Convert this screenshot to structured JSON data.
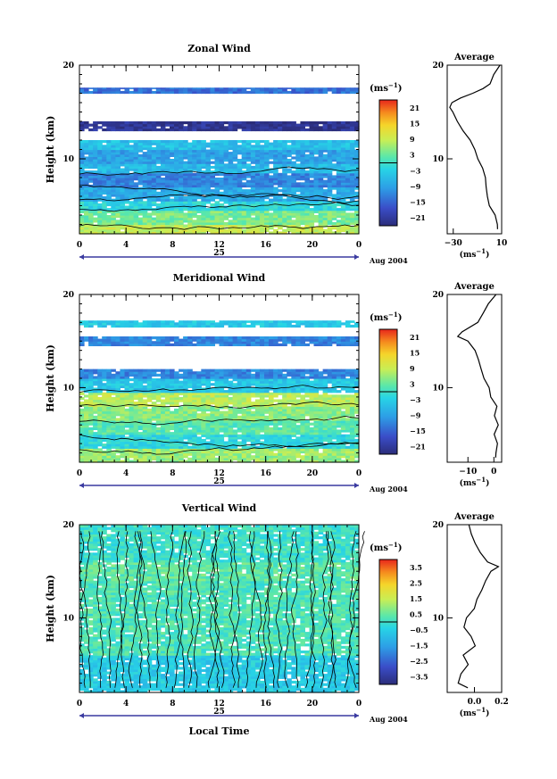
{
  "chart_data": [
    {
      "type": "heatmap",
      "title": "Zonal Wind",
      "ylabel": "Height (km)",
      "ylim": [
        2,
        20
      ],
      "y_ticks": [
        "20",
        "10"
      ],
      "xlim": [
        0,
        24
      ],
      "x_ticks": [
        "0",
        "4",
        "8",
        "12",
        "16",
        "20",
        "0"
      ],
      "date_label": "25",
      "month_label": "Aug 2004",
      "colorbar": {
        "unit": "(ms",
        "unit_exp": "−1",
        "unit_close": ")",
        "ticks": [
          "21",
          "15",
          "9",
          "3",
          "−3",
          "−9",
          "−15",
          "−21"
        ],
        "range": [
          -24,
          24
        ]
      },
      "profile": {
        "title": "Average",
        "xlim": [
          -35,
          10
        ],
        "x_ticks": [
          "−30",
          "10"
        ],
        "y_ticks": [
          "20",
          "10"
        ],
        "unit": "(ms",
        "unit_exp": "−1",
        "unit_close": ")",
        "height": [
          2.5,
          3,
          4,
          5,
          6,
          7,
          8,
          9,
          10,
          11,
          12,
          13,
          14,
          15,
          15.5,
          16,
          16.5,
          17,
          17.5,
          18,
          19,
          20
        ],
        "value": [
          7,
          6,
          4,
          0,
          -2,
          -3,
          -4,
          -6,
          -9,
          -12,
          -16,
          -22,
          -26,
          -30,
          -33,
          -31,
          -24,
          -14,
          -6,
          0,
          4,
          8
        ]
      },
      "layers": [
        {
          "range": [
            2,
            3
          ],
          "value": 9
        },
        {
          "range": [
            3,
            4.5
          ],
          "value": 4
        },
        {
          "range": [
            4.5,
            5.5
          ],
          "value": -2
        },
        {
          "range": [
            5.5,
            7
          ],
          "value": -8
        },
        {
          "range": [
            7,
            8.5
          ],
          "value": -12
        },
        {
          "range": [
            8.5,
            9.5
          ],
          "value": -6
        },
        {
          "range": [
            9.5,
            11
          ],
          "value": -9
        },
        {
          "range": [
            11,
            12
          ],
          "value": -5
        },
        {
          "range": [
            13,
            14
          ],
          "value": -22
        },
        {
          "range": [
            17,
            17.6
          ],
          "value": -14
        }
      ]
    },
    {
      "type": "heatmap",
      "title": "Meridional Wind",
      "ylabel": "Height (km)",
      "ylim": [
        2,
        20
      ],
      "y_ticks": [
        "20",
        "10"
      ],
      "xlim": [
        0,
        24
      ],
      "x_ticks": [
        "0",
        "4",
        "8",
        "12",
        "16",
        "20",
        "0"
      ],
      "date_label": "25",
      "month_label": "Aug 2004",
      "colorbar": {
        "unit": "(ms",
        "unit_exp": "−1",
        "unit_close": ")",
        "ticks": [
          "21",
          "15",
          "9",
          "3",
          "−3",
          "−9",
          "−15",
          "−21"
        ],
        "range": [
          -24,
          24
        ]
      },
      "profile": {
        "title": "Average",
        "xlim": [
          -18,
          3
        ],
        "x_ticks": [
          "−10",
          "0"
        ],
        "y_ticks": [
          "20",
          "10"
        ],
        "unit": "(ms",
        "unit_exp": "−1",
        "unit_close": ")",
        "height": [
          2.5,
          3,
          4,
          5,
          6,
          7,
          8,
          9,
          10,
          11,
          12,
          13,
          14,
          15,
          15.5,
          16,
          17,
          18,
          19,
          20
        ],
        "value": [
          1,
          0.5,
          1.5,
          0,
          1.5,
          0,
          1,
          -1,
          -2,
          -4,
          -5,
          -6,
          -7,
          -10,
          -14,
          -12,
          -6,
          -4,
          -2,
          1
        ]
      },
      "layers": [
        {
          "range": [
            2,
            3.5
          ],
          "value": 6
        },
        {
          "range": [
            3.5,
            5
          ],
          "value": -2
        },
        {
          "range": [
            5,
            6.5
          ],
          "value": 2
        },
        {
          "range": [
            6.5,
            8
          ],
          "value": 5
        },
        {
          "range": [
            8,
            9.5
          ],
          "value": 8
        },
        {
          "range": [
            9.5,
            11
          ],
          "value": -4
        },
        {
          "range": [
            11,
            12
          ],
          "value": -12
        },
        {
          "range": [
            14.5,
            15.5
          ],
          "value": -12
        },
        {
          "range": [
            16.5,
            17.2
          ],
          "value": -4
        }
      ]
    },
    {
      "type": "heatmap",
      "title": "Vertical Wind",
      "ylabel": "Height (km)",
      "xlabel": "Local Time",
      "ylim": [
        2,
        20
      ],
      "y_ticks": [
        "20",
        "10"
      ],
      "xlim": [
        0,
        24
      ],
      "x_ticks": [
        "0",
        "4",
        "8",
        "12",
        "16",
        "20",
        "0"
      ],
      "date_label": "25",
      "month_label": "Aug 2004",
      "colorbar": {
        "unit": "(ms",
        "unit_exp": "−1",
        "unit_close": ")",
        "ticks": [
          "3.5",
          "2.5",
          "1.5",
          "0.5",
          "−0.5",
          "−1.5",
          "−2.5",
          "−3.5"
        ],
        "range": [
          -4,
          4
        ]
      },
      "profile": {
        "title": "Average",
        "xlim": [
          -0.2,
          0.2
        ],
        "x_ticks": [
          "0.0",
          "0.2"
        ],
        "y_ticks": [
          "20",
          "10"
        ],
        "unit": "(ms",
        "unit_exp": "−1",
        "unit_close": ")",
        "height": [
          2.5,
          3,
          4,
          5,
          6,
          7,
          8,
          9,
          10,
          11,
          12,
          13,
          14,
          15,
          15.5,
          16,
          17,
          18,
          19,
          20
        ],
        "value": [
          -0.05,
          -0.12,
          -0.1,
          -0.05,
          -0.08,
          0.0,
          -0.03,
          -0.08,
          -0.06,
          0.0,
          0.02,
          0.05,
          0.08,
          0.12,
          0.18,
          0.1,
          0.04,
          0.0,
          -0.02,
          -0.04
        ]
      },
      "layers": [
        {
          "range": [
            2,
            6
          ],
          "value": -0.6
        },
        {
          "range": [
            6,
            14
          ],
          "value": 0.2
        },
        {
          "range": [
            14,
            16
          ],
          "value": 0.4
        },
        {
          "range": [
            16,
            20
          ],
          "value": 0.0
        }
      ]
    }
  ]
}
